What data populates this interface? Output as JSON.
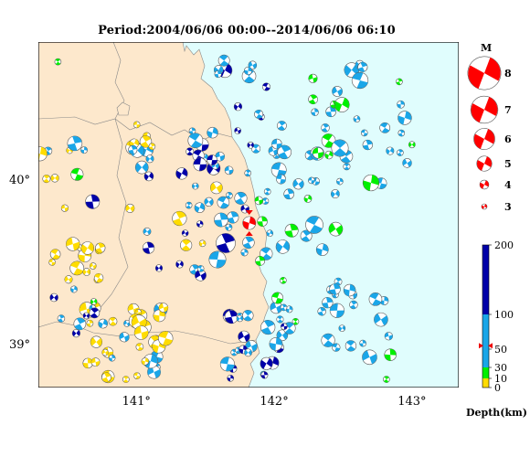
{
  "title": "Period:2004/06/06 00:00--2014/06/06 06:10",
  "map": {
    "lon_range": [
      140.3,
      143.35
    ],
    "lat_range": [
      38.75,
      40.85
    ],
    "lat_ticks": [
      {
        "value": 39,
        "label": "39°"
      },
      {
        "value": 40,
        "label": "40°"
      }
    ],
    "lon_ticks": [
      {
        "value": 141,
        "label": "141°"
      },
      {
        "value": 142,
        "label": "142°"
      },
      {
        "value": 143,
        "label": "143°"
      }
    ],
    "land_color": "#fde8cc",
    "sea_color": "#e0fdfd",
    "main_event": {
      "lon": 141.83,
      "lat": 39.75,
      "mag": 6.0,
      "depth": 55
    }
  },
  "magnitude_legend": {
    "title": "M",
    "entries": [
      {
        "label": "8",
        "mag": 8
      },
      {
        "label": "7",
        "mag": 7
      },
      {
        "label": "6",
        "mag": 6
      },
      {
        "label": "5",
        "mag": 5
      },
      {
        "label": "4",
        "mag": 4
      },
      {
        "label": "3",
        "mag": 3
      }
    ]
  },
  "depth_legend": {
    "title": "Depth(km)",
    "ticks": [
      {
        "value": 200,
        "label": "200"
      },
      {
        "value": 100,
        "label": "100"
      },
      {
        "value": 50,
        "label": "50"
      },
      {
        "value": 30,
        "label": "30"
      },
      {
        "value": 10,
        "label": "10"
      },
      {
        "value": 0,
        "label": "0"
      }
    ],
    "bands": [
      {
        "from": 0,
        "to": 10,
        "color": "#ffdc00"
      },
      {
        "from": 10,
        "to": 30,
        "color": "#00f000"
      },
      {
        "from": 30,
        "to": 100,
        "color": "#1aa6e8"
      },
      {
        "from": 100,
        "to": 200,
        "color": "#0000a8"
      }
    ],
    "marker_value": 55
  },
  "event_colors": {
    "shallow": "#ffdc00",
    "crust": "#00f000",
    "intermediate": "#1aa6e8",
    "deep": "#0000a8",
    "main": "#ff0000"
  }
}
